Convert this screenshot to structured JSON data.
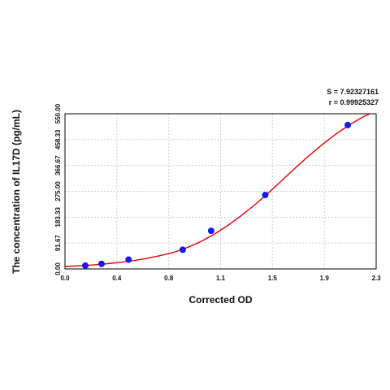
{
  "stats": {
    "s_text": "S = 7.92327161",
    "r_text": "r = 0.99925327"
  },
  "chart_data": {
    "type": "scatter",
    "title": "",
    "xlabel": "Corrected OD",
    "ylabel": "The concentration of IL17D (pg/mL)",
    "xlim": [
      0.0,
      2.3
    ],
    "ylim": [
      0.0,
      550.0
    ],
    "x_ticks": [
      "0.0",
      "0.4",
      "0.8",
      "1.1",
      "1.5",
      "1.9",
      "2.3"
    ],
    "x_tick_values": [
      0.0,
      0.383,
      0.767,
      1.15,
      1.533,
      1.917,
      2.3
    ],
    "y_ticks": [
      "0.00",
      "91.67",
      "183.33",
      "275.00",
      "366.67",
      "458.33",
      "550.00"
    ],
    "y_tick_values": [
      0.0,
      91.67,
      183.33,
      275.0,
      366.67,
      458.33,
      550.0
    ],
    "grid": true,
    "point_color": "#1a1ae6",
    "curve_color": "#e60000",
    "series": [
      {
        "values": [
          {
            "x": 0.15,
            "y": 12.0
          },
          {
            "x": 0.27,
            "y": 18.0
          },
          {
            "x": 0.47,
            "y": 33.0
          },
          {
            "x": 0.87,
            "y": 68.0
          },
          {
            "x": 1.08,
            "y": 135.0
          },
          {
            "x": 1.48,
            "y": 262.0
          },
          {
            "x": 2.09,
            "y": 510.0
          }
        ]
      }
    ],
    "fit_curve": {
      "x": [
        0.0,
        0.1,
        0.2,
        0.3,
        0.4,
        0.5,
        0.6,
        0.7,
        0.8,
        0.9,
        1.0,
        1.1,
        1.2,
        1.3,
        1.4,
        1.5,
        1.6,
        1.7,
        1.8,
        1.9,
        2.0,
        2.1,
        2.2,
        2.3
      ],
      "y": [
        9,
        11,
        14,
        18,
        23,
        29,
        37,
        47,
        58,
        75,
        96,
        122,
        153,
        188,
        226,
        268,
        312,
        357,
        400,
        440,
        477,
        510,
        538,
        560
      ]
    }
  }
}
